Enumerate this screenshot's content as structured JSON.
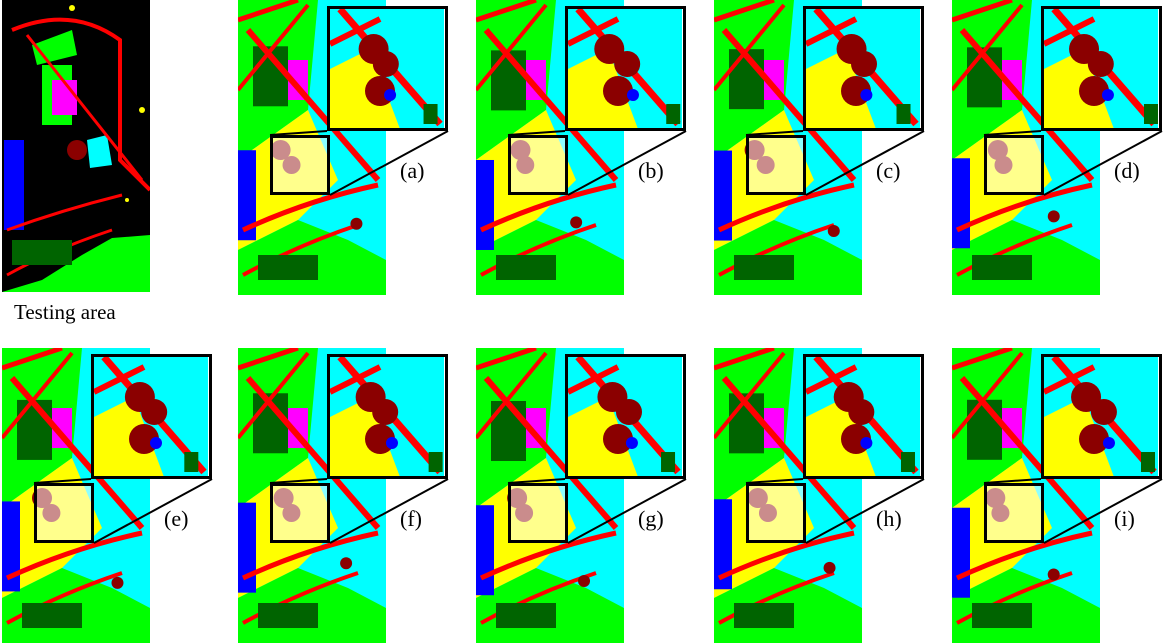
{
  "testing_area": {
    "caption": "Testing area"
  },
  "panels": [
    {
      "label": "(a)"
    },
    {
      "label": "(b)"
    },
    {
      "label": "(c)"
    },
    {
      "label": "(d)"
    },
    {
      "label": "(e)"
    },
    {
      "label": "(f)"
    },
    {
      "label": "(g)"
    },
    {
      "label": "(h)"
    },
    {
      "label": "(i)"
    }
  ],
  "class_colors": {
    "road": "#ff0000",
    "water": "#00ffff",
    "grass": "#00ff00",
    "vegetation": "#ffff00",
    "building": "#8b0000",
    "shadow": "#0000ff",
    "forest": "#006400",
    "roof": "#ff00ff",
    "background": "#000000"
  }
}
